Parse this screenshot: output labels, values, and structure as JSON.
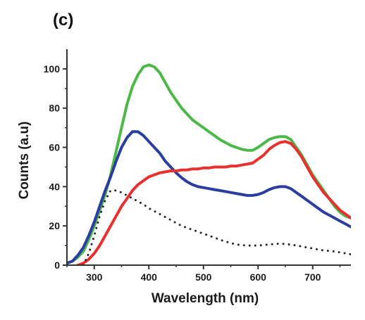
{
  "chart_data": {
    "type": "line",
    "panel_label": "(c)",
    "title": "",
    "xlabel": "Wavelength (nm)",
    "ylabel": "Counts (a.u)",
    "xlim": [
      250,
      770
    ],
    "ylim": [
      0,
      110
    ],
    "x_ticks": [
      300,
      400,
      500,
      600,
      700
    ],
    "y_ticks": [
      0,
      20,
      40,
      60,
      80,
      100
    ],
    "grid": false,
    "legend": "none",
    "series": [
      {
        "color": "#4cb848",
        "style": "solid",
        "points": [
          [
            250,
            1
          ],
          [
            260,
            2
          ],
          [
            270,
            4
          ],
          [
            280,
            7
          ],
          [
            290,
            13
          ],
          [
            300,
            20
          ],
          [
            310,
            28
          ],
          [
            320,
            36
          ],
          [
            330,
            46
          ],
          [
            340,
            58
          ],
          [
            350,
            70
          ],
          [
            360,
            82
          ],
          [
            370,
            91
          ],
          [
            380,
            97
          ],
          [
            390,
            101
          ],
          [
            400,
            102
          ],
          [
            410,
            101
          ],
          [
            420,
            98
          ],
          [
            430,
            93
          ],
          [
            440,
            88
          ],
          [
            450,
            84
          ],
          [
            460,
            80
          ],
          [
            470,
            77
          ],
          [
            480,
            74
          ],
          [
            490,
            72
          ],
          [
            500,
            70
          ],
          [
            510,
            68
          ],
          [
            520,
            66
          ],
          [
            530,
            64
          ],
          [
            540,
            62.5
          ],
          [
            550,
            61
          ],
          [
            560,
            60
          ],
          [
            570,
            59
          ],
          [
            580,
            58.5
          ],
          [
            590,
            58.5
          ],
          [
            600,
            60
          ],
          [
            610,
            62
          ],
          [
            620,
            64
          ],
          [
            630,
            65
          ],
          [
            640,
            65.5
          ],
          [
            650,
            65.5
          ],
          [
            660,
            64
          ],
          [
            670,
            60
          ],
          [
            680,
            56
          ],
          [
            690,
            51
          ],
          [
            700,
            46
          ],
          [
            710,
            42
          ],
          [
            720,
            38
          ],
          [
            730,
            34
          ],
          [
            740,
            30
          ],
          [
            750,
            27
          ],
          [
            760,
            25
          ],
          [
            770,
            24
          ]
        ]
      },
      {
        "color": "#2b3ea0",
        "style": "solid",
        "points": [
          [
            250,
            1
          ],
          [
            260,
            2
          ],
          [
            270,
            5
          ],
          [
            280,
            9
          ],
          [
            290,
            15
          ],
          [
            300,
            22
          ],
          [
            310,
            30
          ],
          [
            320,
            38
          ],
          [
            330,
            45
          ],
          [
            340,
            53
          ],
          [
            350,
            60
          ],
          [
            360,
            65
          ],
          [
            370,
            68
          ],
          [
            380,
            68
          ],
          [
            390,
            66
          ],
          [
            400,
            63
          ],
          [
            410,
            60
          ],
          [
            420,
            57
          ],
          [
            430,
            53
          ],
          [
            440,
            50
          ],
          [
            450,
            47
          ],
          [
            460,
            44.5
          ],
          [
            470,
            42.5
          ],
          [
            480,
            41
          ],
          [
            490,
            40
          ],
          [
            500,
            39.5
          ],
          [
            510,
            39
          ],
          [
            520,
            38.5
          ],
          [
            530,
            38
          ],
          [
            540,
            37.5
          ],
          [
            550,
            37
          ],
          [
            560,
            36.5
          ],
          [
            570,
            36
          ],
          [
            580,
            35.5
          ],
          [
            590,
            35.5
          ],
          [
            600,
            36
          ],
          [
            610,
            37
          ],
          [
            620,
            38.5
          ],
          [
            630,
            39.5
          ],
          [
            640,
            40
          ],
          [
            650,
            40
          ],
          [
            660,
            39
          ],
          [
            670,
            37
          ],
          [
            680,
            35
          ],
          [
            690,
            33
          ],
          [
            700,
            31
          ],
          [
            710,
            29
          ],
          [
            720,
            27
          ],
          [
            730,
            25.5
          ],
          [
            740,
            24
          ],
          [
            750,
            22.5
          ],
          [
            760,
            21
          ],
          [
            770,
            19.5
          ]
        ]
      },
      {
        "color": "#e8312f",
        "style": "solid",
        "points": [
          [
            270,
            0
          ],
          [
            280,
            1
          ],
          [
            290,
            3
          ],
          [
            300,
            6
          ],
          [
            310,
            10
          ],
          [
            320,
            15
          ],
          [
            330,
            20
          ],
          [
            340,
            25
          ],
          [
            350,
            30
          ],
          [
            360,
            34
          ],
          [
            370,
            38
          ],
          [
            380,
            41
          ],
          [
            390,
            43
          ],
          [
            400,
            45
          ],
          [
            410,
            46
          ],
          [
            420,
            47
          ],
          [
            430,
            47.5
          ],
          [
            440,
            48
          ],
          [
            450,
            48
          ],
          [
            460,
            48.5
          ],
          [
            470,
            48.5
          ],
          [
            480,
            49
          ],
          [
            490,
            49
          ],
          [
            500,
            49.5
          ],
          [
            510,
            49.5
          ],
          [
            520,
            50
          ],
          [
            530,
            50
          ],
          [
            540,
            50
          ],
          [
            550,
            50.5
          ],
          [
            560,
            50.5
          ],
          [
            570,
            51
          ],
          [
            580,
            51.5
          ],
          [
            590,
            52
          ],
          [
            600,
            54
          ],
          [
            610,
            56
          ],
          [
            620,
            59
          ],
          [
            630,
            61
          ],
          [
            640,
            62.5
          ],
          [
            650,
            63
          ],
          [
            660,
            62
          ],
          [
            670,
            59
          ],
          [
            680,
            55
          ],
          [
            690,
            50
          ],
          [
            700,
            45
          ],
          [
            710,
            41
          ],
          [
            720,
            37
          ],
          [
            730,
            34
          ],
          [
            740,
            31
          ],
          [
            750,
            28
          ],
          [
            760,
            26
          ],
          [
            770,
            24
          ]
        ]
      },
      {
        "color": "#222222",
        "style": "dotted",
        "points": [
          [
            280,
            0
          ],
          [
            290,
            6
          ],
          [
            300,
            15
          ],
          [
            310,
            25
          ],
          [
            320,
            33
          ],
          [
            330,
            38
          ],
          [
            340,
            38
          ],
          [
            350,
            37
          ],
          [
            360,
            35.5
          ],
          [
            370,
            34
          ],
          [
            380,
            32.5
          ],
          [
            390,
            31
          ],
          [
            400,
            29
          ],
          [
            420,
            26
          ],
          [
            440,
            23
          ],
          [
            460,
            20
          ],
          [
            480,
            18
          ],
          [
            500,
            16
          ],
          [
            520,
            14
          ],
          [
            540,
            12
          ],
          [
            560,
            10.5
          ],
          [
            580,
            10
          ],
          [
            600,
            10
          ],
          [
            620,
            10.5
          ],
          [
            640,
            11
          ],
          [
            660,
            10.5
          ],
          [
            680,
            9.5
          ],
          [
            700,
            8.5
          ],
          [
            720,
            7.5
          ],
          [
            740,
            7
          ],
          [
            770,
            5.5
          ]
        ]
      }
    ]
  }
}
